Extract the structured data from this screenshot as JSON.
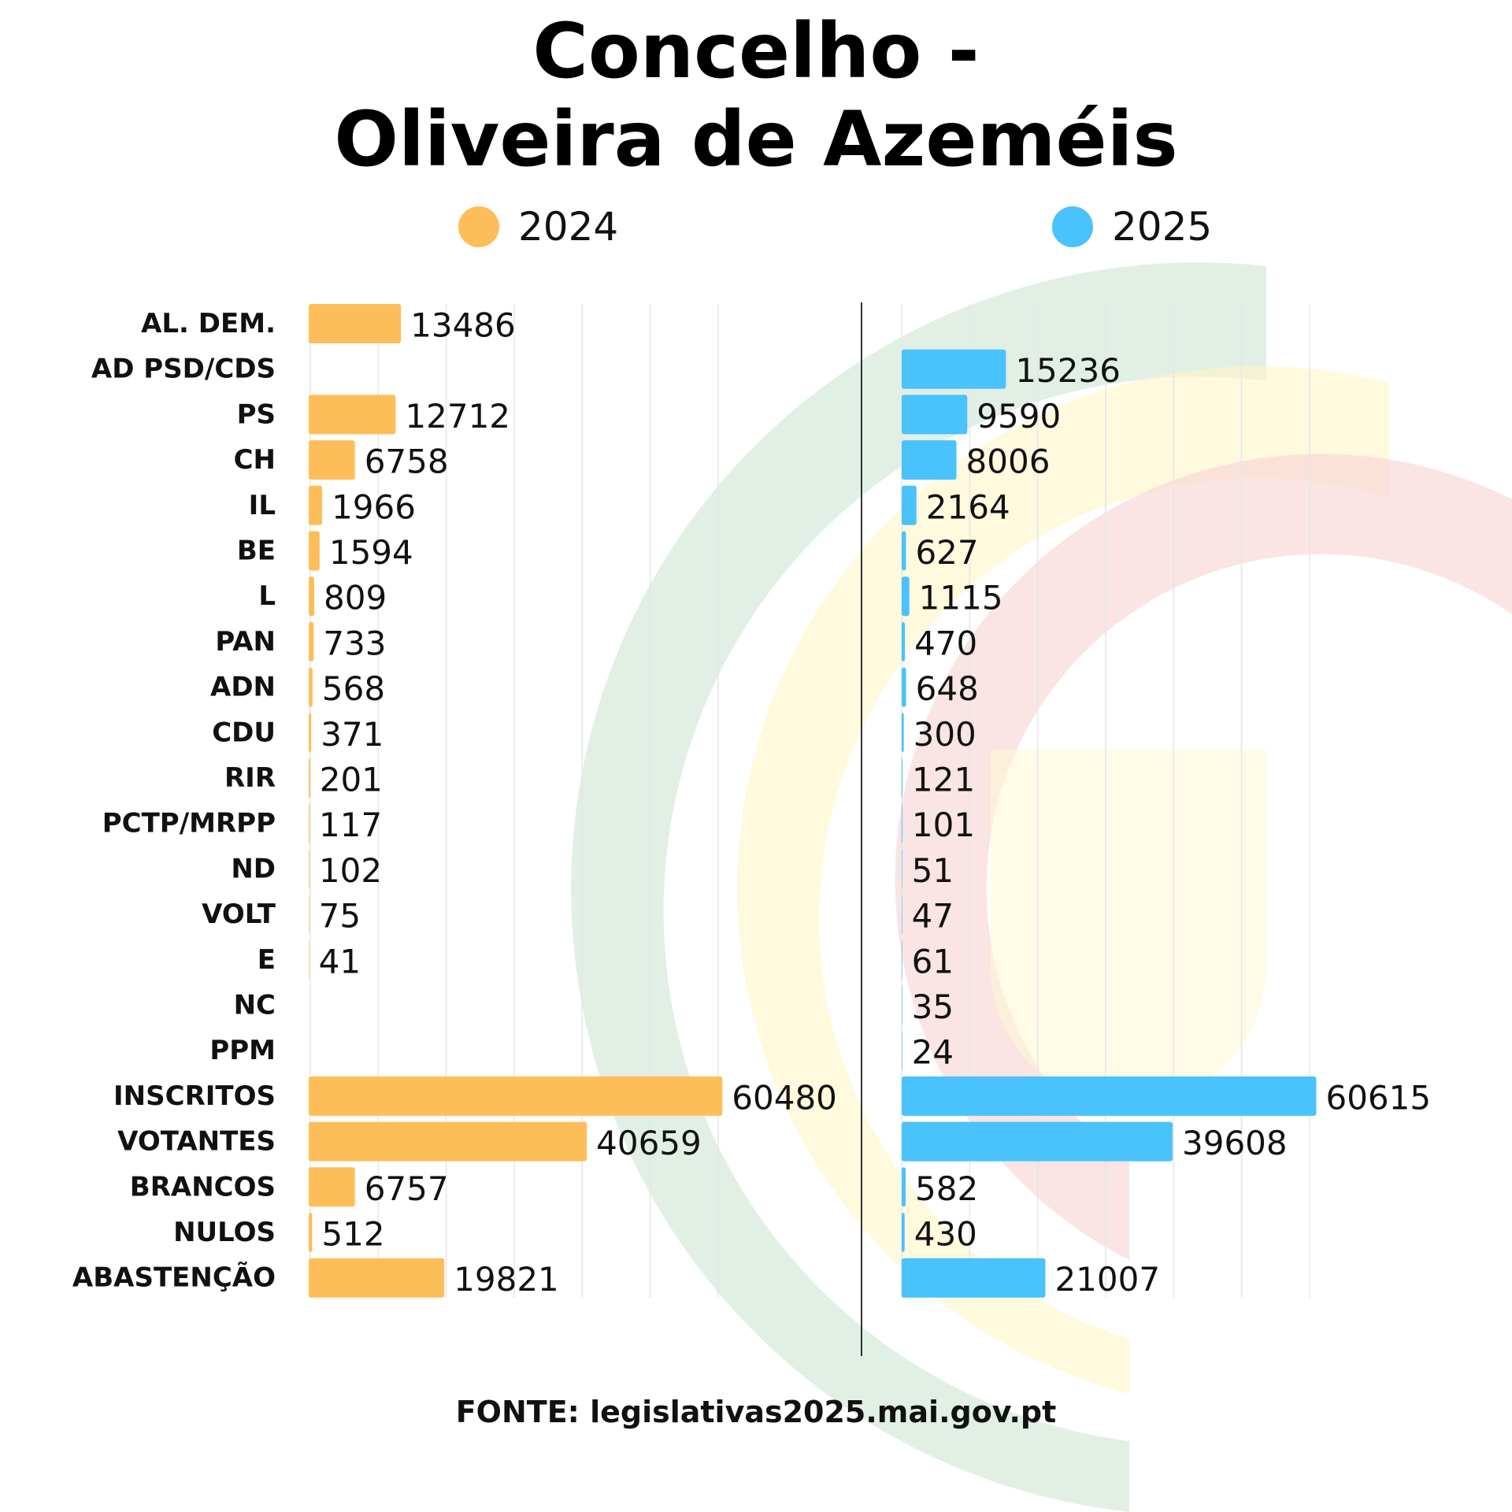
{
  "title": {
    "line1": "Concelho -",
    "line2": "Oliveira de Azeméis"
  },
  "legend": [
    {
      "label": "2024",
      "color": "#FDBE5A"
    },
    {
      "label": "2025",
      "color": "#4AC2FB"
    }
  ],
  "source": "FONTE: legislativas2025.mai.gov.pt",
  "chart_data": {
    "type": "bar",
    "orientation": "horizontal",
    "categories": [
      "AL. DEM.",
      "AD PSD/CDS",
      "PS",
      "CH",
      "IL",
      "BE",
      "L",
      "PAN",
      "ADN",
      "CDU",
      "RIR",
      "PCTP/MRPP",
      "ND",
      "VOLT",
      "E",
      "NC",
      "PPM",
      "INSCRITOS",
      "VOTANTES",
      "BRANCOS",
      "NULOS",
      "ABASTENÇÃO"
    ],
    "series": [
      {
        "name": "2024",
        "color": "#FDBE5A",
        "values": [
          13486,
          null,
          12712,
          6758,
          1966,
          1594,
          809,
          733,
          568,
          371,
          201,
          117,
          102,
          75,
          41,
          null,
          null,
          60480,
          40659,
          6757,
          512,
          19821
        ]
      },
      {
        "name": "2025",
        "color": "#4AC2FB",
        "values": [
          null,
          15236,
          9590,
          8006,
          2164,
          627,
          1115,
          470,
          648,
          300,
          121,
          101,
          51,
          47,
          61,
          35,
          24,
          60615,
          39608,
          582,
          430,
          21007
        ]
      }
    ],
    "xlim": [
      0,
      70000
    ],
    "grid": true,
    "legend_position": "top"
  },
  "colors": {
    "bar_2024": "#FDBE5A",
    "bar_2025": "#4AC2FB",
    "gridline": "#e6e6e6",
    "divider": "#333333"
  }
}
